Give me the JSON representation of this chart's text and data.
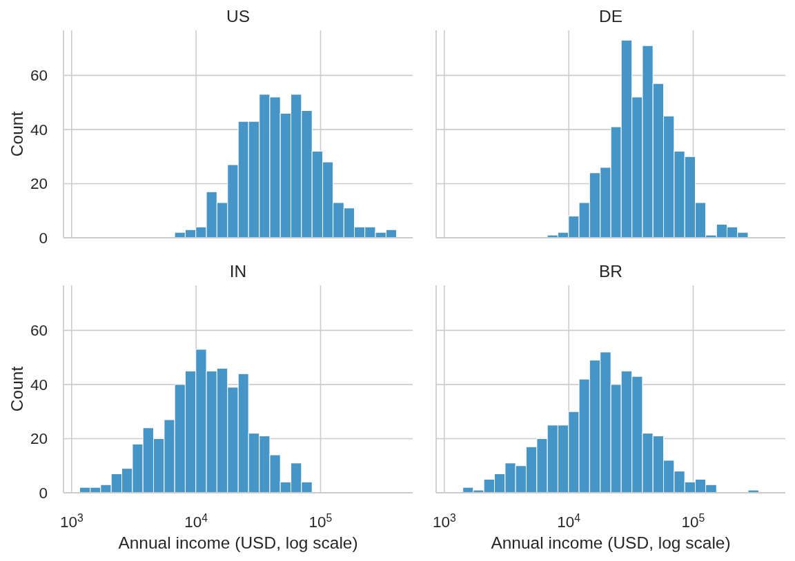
{
  "chart_data": [
    {
      "type": "histogram",
      "title": "US",
      "ylabel": "Count",
      "bins": [
        6730,
        8180,
        9950,
        12100,
        14700,
        17900,
        21800,
        26400,
        32200,
        39100,
        47500,
        57800,
        70300,
        85500,
        104000,
        126000,
        154000,
        187000,
        227000,
        276000,
        336000,
        408000
      ],
      "values": [
        2,
        3,
        4,
        17,
        13,
        27,
        43,
        43,
        53,
        52,
        46,
        53,
        47,
        32,
        28,
        13,
        11,
        4,
        4,
        2,
        3
      ],
      "color": "#4596c7",
      "xlim": [
        860,
        550000
      ],
      "ylim": [
        0,
        76.65
      ],
      "xticks": [
        {
          "value": 1000,
          "label": null
        },
        {
          "value": 10000,
          "label": null
        },
        {
          "value": 100000,
          "label": null
        }
      ],
      "yticks": [
        0,
        20,
        40,
        60
      ],
      "log": "x",
      "grid": true,
      "tick_labels": "y"
    },
    {
      "type": "histogram",
      "title": "DE",
      "bins": [
        6730,
        8180,
        9950,
        12100,
        14700,
        17900,
        21800,
        26400,
        32200,
        39100,
        47500,
        57800,
        70300,
        85500,
        104000,
        126000,
        154000,
        187000,
        227000,
        276000
      ],
      "values": [
        1,
        2,
        8,
        13,
        24,
        26,
        41,
        73,
        52,
        71,
        57,
        45,
        32,
        30,
        13,
        1,
        5,
        4,
        2
      ],
      "color": "#4596c7",
      "xlim": [
        860,
        550000
      ],
      "ylim": [
        0,
        76.65
      ],
      "xticks": [
        {
          "value": 1000,
          "label": null
        },
        {
          "value": 10000,
          "label": null
        },
        {
          "value": 100000,
          "label": null
        }
      ],
      "yticks": [
        0,
        20,
        40,
        60
      ],
      "log": "x",
      "grid": true,
      "tick_labels": false
    },
    {
      "type": "histogram",
      "title": "IN",
      "xlabel": "Annual income (USD, log scale)",
      "ylabel": "Count",
      "bins": [
        1160,
        1410,
        1710,
        2080,
        2530,
        3080,
        3740,
        4550,
        5540,
        6730,
        8180,
        9950,
        12100,
        14700,
        17900,
        21800,
        26400,
        32200,
        39100,
        47500,
        57800,
        70300,
        85500
      ],
      "values": [
        2,
        2,
        3,
        7,
        9,
        18,
        24,
        20,
        27,
        40,
        45,
        53,
        45,
        46,
        39,
        44,
        22,
        21,
        14,
        4,
        11,
        4
      ],
      "color": "#4596c7",
      "xlim": [
        860,
        550000
      ],
      "ylim": [
        0,
        76.65
      ],
      "xticks": [
        {
          "value": 1000,
          "label": "10$^{3}$"
        },
        {
          "value": 10000,
          "label": "10$^{4}$"
        },
        {
          "value": 100000,
          "label": "10$^{5}$"
        }
      ],
      "yticks": [
        0,
        20,
        40,
        60
      ],
      "log": "x",
      "grid": true
    },
    {
      "type": "histogram",
      "title": "BR",
      "xlabel": "Annual income (USD, log scale)",
      "bins": [
        1410,
        1710,
        2080,
        2530,
        3080,
        3740,
        4550,
        5540,
        6730,
        8180,
        9950,
        12100,
        14700,
        17900,
        21800,
        26400,
        32200,
        39100,
        47500,
        57800,
        70300,
        85500,
        104000,
        126000,
        154000,
        276000,
        336000
      ],
      "values": [
        2,
        1,
        5,
        7,
        11,
        10,
        17,
        20,
        25,
        25,
        30,
        42,
        49,
        52,
        40,
        45,
        43,
        22,
        21,
        12,
        8,
        4,
        5,
        3,
        0,
        1
      ],
      "color": "#4596c7",
      "xlim": [
        860,
        550000
      ],
      "ylim": [
        0,
        76.65
      ],
      "xticks": [
        {
          "value": 1000,
          "label": "10$^{3}$"
        },
        {
          "value": 10000,
          "label": "10$^{4}$"
        },
        {
          "value": 100000,
          "label": "10$^{5}$"
        }
      ],
      "yticks": [
        0,
        20,
        40,
        60
      ],
      "log": "x",
      "grid": true,
      "tick_labels": "x"
    }
  ]
}
